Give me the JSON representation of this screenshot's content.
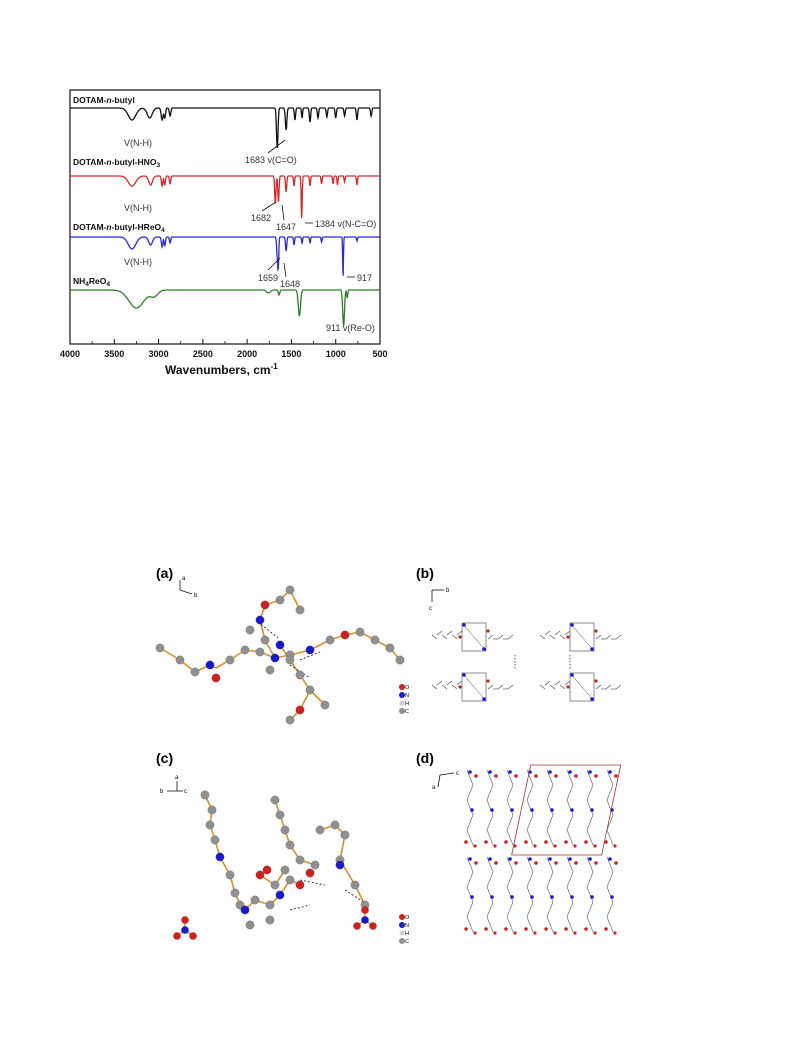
{
  "ir_chart": {
    "xlabel": "Wavenumbers, cm",
    "xlabel_sup": "-1",
    "xticks": [
      "4000",
      "3500",
      "3000",
      "2500",
      "2000",
      "1500",
      "1000",
      "500"
    ],
    "series": [
      {
        "name": "DOTAM-",
        "name_i": "n",
        "name_tail": "-butyl",
        "color": "#111111"
      },
      {
        "name": "DOTAM-",
        "name_i": "n",
        "name_tail": "-butyl-HNO",
        "sub": "3",
        "color": "#d42a2a"
      },
      {
        "name": "DOTAM-",
        "name_i": "n",
        "name_tail": "-butyl-HReO",
        "sub": "4",
        "color": "#2a2ad8"
      },
      {
        "name": "NH",
        "sub1": "4",
        "name_tail": "ReO",
        "sub": "4",
        "color": "#2f7d2f"
      }
    ],
    "annotations": {
      "s1_nh": "V(N-H)",
      "s1_co": "1683 v(C=O)",
      "s2_nh": "V(N-H)",
      "s2_1682": "1682",
      "s2_1647": "1647",
      "s2_1384": "1384 v(N-C=O)",
      "s3_nh": "V(N-H)",
      "s3_1659": "1659",
      "s3_1648": "1648",
      "s3_917": "917",
      "s4_reo": "911 v(Re-O)"
    }
  },
  "panels": {
    "a": {
      "label": "(a)",
      "axes": [
        "a",
        "b"
      ],
      "legend": [
        "O",
        "N",
        "H",
        "C"
      ]
    },
    "b": {
      "label": "(b)",
      "axes": [
        "b",
        "c"
      ]
    },
    "c": {
      "label": "(c)",
      "axes": [
        "a",
        "b",
        "c"
      ],
      "legend": [
        "O",
        "N",
        "H",
        "C"
      ]
    },
    "d": {
      "label": "(d)",
      "axes": [
        "c",
        "a"
      ]
    }
  },
  "colors": {
    "oxygen": "#cc2222",
    "nitrogen": "#1a1acc",
    "hydrogen": "#dddddd",
    "carbon": "#909090",
    "bond": "#d89030"
  }
}
